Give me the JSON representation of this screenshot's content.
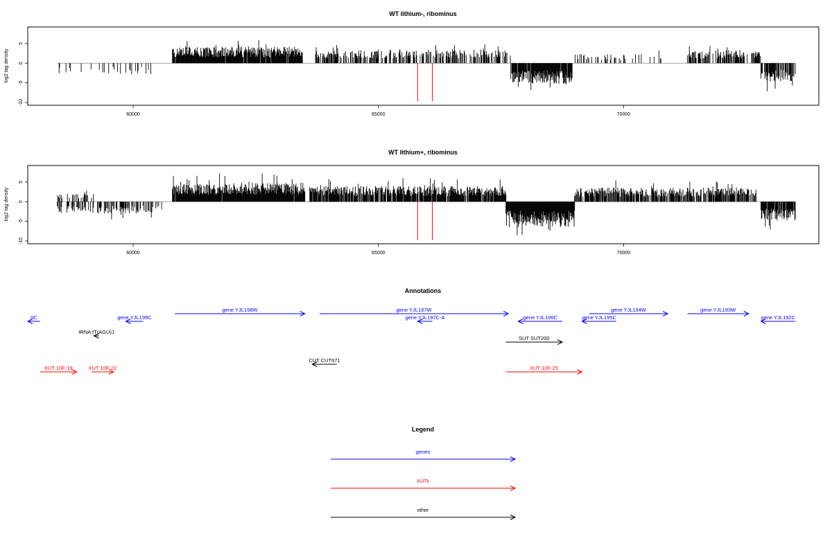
{
  "colors": {
    "gene": "#0000ff",
    "xut": "#ff0000",
    "other": "#000000",
    "marker": "#ff0000"
  },
  "chart_data": [
    {
      "type": "bar",
      "title": "WT lithium-, ribominus",
      "ylabel": "log2 tag density",
      "xlim": [
        57850,
        73980
      ],
      "ylim": [
        -10,
        8.5
      ],
      "xticks": [
        60000,
        65000,
        70000
      ],
      "yticks": [
        5,
        0,
        -5,
        -10
      ],
      "markers": [
        65800,
        66100
      ],
      "segments": [
        {
          "from": 58450,
          "to": 60500,
          "sign": -1,
          "amp": 2.8,
          "density": 0.12
        },
        {
          "from": 60800,
          "to": 63450,
          "sign": 1,
          "amp": 4.2,
          "density": 0.95
        },
        {
          "from": 63700,
          "to": 65000,
          "sign": 1,
          "amp": 3.2,
          "density": 0.55
        },
        {
          "from": 65000,
          "to": 67700,
          "sign": 1,
          "amp": 3.6,
          "density": 0.5
        },
        {
          "from": 67700,
          "to": 68950,
          "sign": -1,
          "amp": 5.2,
          "density": 0.95
        },
        {
          "from": 69000,
          "to": 70800,
          "sign": 1,
          "amp": 2.4,
          "density": 0.18
        },
        {
          "from": 71300,
          "to": 72800,
          "sign": 1,
          "amp": 3.4,
          "density": 0.6
        },
        {
          "from": 72800,
          "to": 73500,
          "sign": -1,
          "amp": 4.8,
          "density": 0.85
        }
      ]
    },
    {
      "type": "bar",
      "title": "WT lithium+, ribominus",
      "ylabel": "log2 tag density",
      "xlim": [
        57850,
        73980
      ],
      "ylim": [
        -10,
        8.5
      ],
      "xticks": [
        60000,
        65000,
        70000
      ],
      "yticks": [
        5,
        0,
        -5,
        -10
      ],
      "markers": [
        65800,
        66100
      ],
      "segments": [
        {
          "from": 58450,
          "to": 60600,
          "sign": -1,
          "amp": 3.0,
          "density": 0.45
        },
        {
          "from": 58450,
          "to": 59200,
          "sign": 1,
          "amp": 2.0,
          "density": 0.3
        },
        {
          "from": 60800,
          "to": 63500,
          "sign": 1,
          "amp": 4.8,
          "density": 0.98
        },
        {
          "from": 63600,
          "to": 67600,
          "sign": 1,
          "amp": 4.0,
          "density": 0.85
        },
        {
          "from": 67600,
          "to": 69000,
          "sign": -1,
          "amp": 6.5,
          "density": 1.0
        },
        {
          "from": 69000,
          "to": 72700,
          "sign": 1,
          "amp": 3.6,
          "density": 0.75
        },
        {
          "from": 72800,
          "to": 73500,
          "sign": -1,
          "amp": 4.8,
          "density": 0.9
        }
      ]
    }
  ],
  "annotations": {
    "title": "Annotations",
    "items": [
      {
        "label": "0C",
        "kind": "gene",
        "from": 58100,
        "to": 57850,
        "row": 1
      },
      {
        "label": "gene YJL199C",
        "kind": "gene",
        "from": 60200,
        "to": 59850,
        "row": 1
      },
      {
        "label": "gene YJL198W",
        "kind": "gene",
        "from": 60850,
        "to": 63500,
        "row": 0
      },
      {
        "label": "gene YJL197W",
        "kind": "gene",
        "from": 63800,
        "to": 67650,
        "row": 0
      },
      {
        "label": "gene YJL197C-A",
        "kind": "gene",
        "from": 66100,
        "to": 65800,
        "row": 1
      },
      {
        "label": "gene YJL196C",
        "kind": "gene",
        "from": 68750,
        "to": 67850,
        "row": 1
      },
      {
        "label": "gene YJL195C",
        "kind": "gene",
        "from": 69850,
        "to": 69150,
        "row": 1
      },
      {
        "label": "gene YJL194W",
        "kind": "gene",
        "from": 69300,
        "to": 70900,
        "row": 0
      },
      {
        "label": "gene YJL193W",
        "kind": "gene",
        "from": 71300,
        "to": 72550,
        "row": 0
      },
      {
        "label": "gene YJL192C",
        "kind": "gene",
        "from": 73500,
        "to": 72800,
        "row": 1
      },
      {
        "label": "tRNA tT(AGU)J",
        "kind": "other",
        "from": 59300,
        "to": 59200,
        "row": 2
      },
      {
        "label": "SUT SUT200",
        "kind": "other",
        "from": 67600,
        "to": 68750,
        "row": 3
      },
      {
        "label": "CUT CUT671",
        "kind": "other",
        "from": 64150,
        "to": 63650,
        "row": 4
      },
      {
        "label": "XUT 10F-19",
        "kind": "xut",
        "from": 58100,
        "to": 58850,
        "row": 5
      },
      {
        "label": "XUT 10F-22",
        "kind": "xut",
        "from": 59150,
        "to": 59600,
        "row": 5
      },
      {
        "label": "XUT 10F-25",
        "kind": "xut",
        "from": 67600,
        "to": 69150,
        "row": 5
      }
    ]
  },
  "legend": {
    "title": "Legend",
    "items": [
      {
        "label": "genes",
        "kind": "gene"
      },
      {
        "label": "XUTs",
        "kind": "xut"
      },
      {
        "label": "other",
        "kind": "other"
      }
    ]
  }
}
